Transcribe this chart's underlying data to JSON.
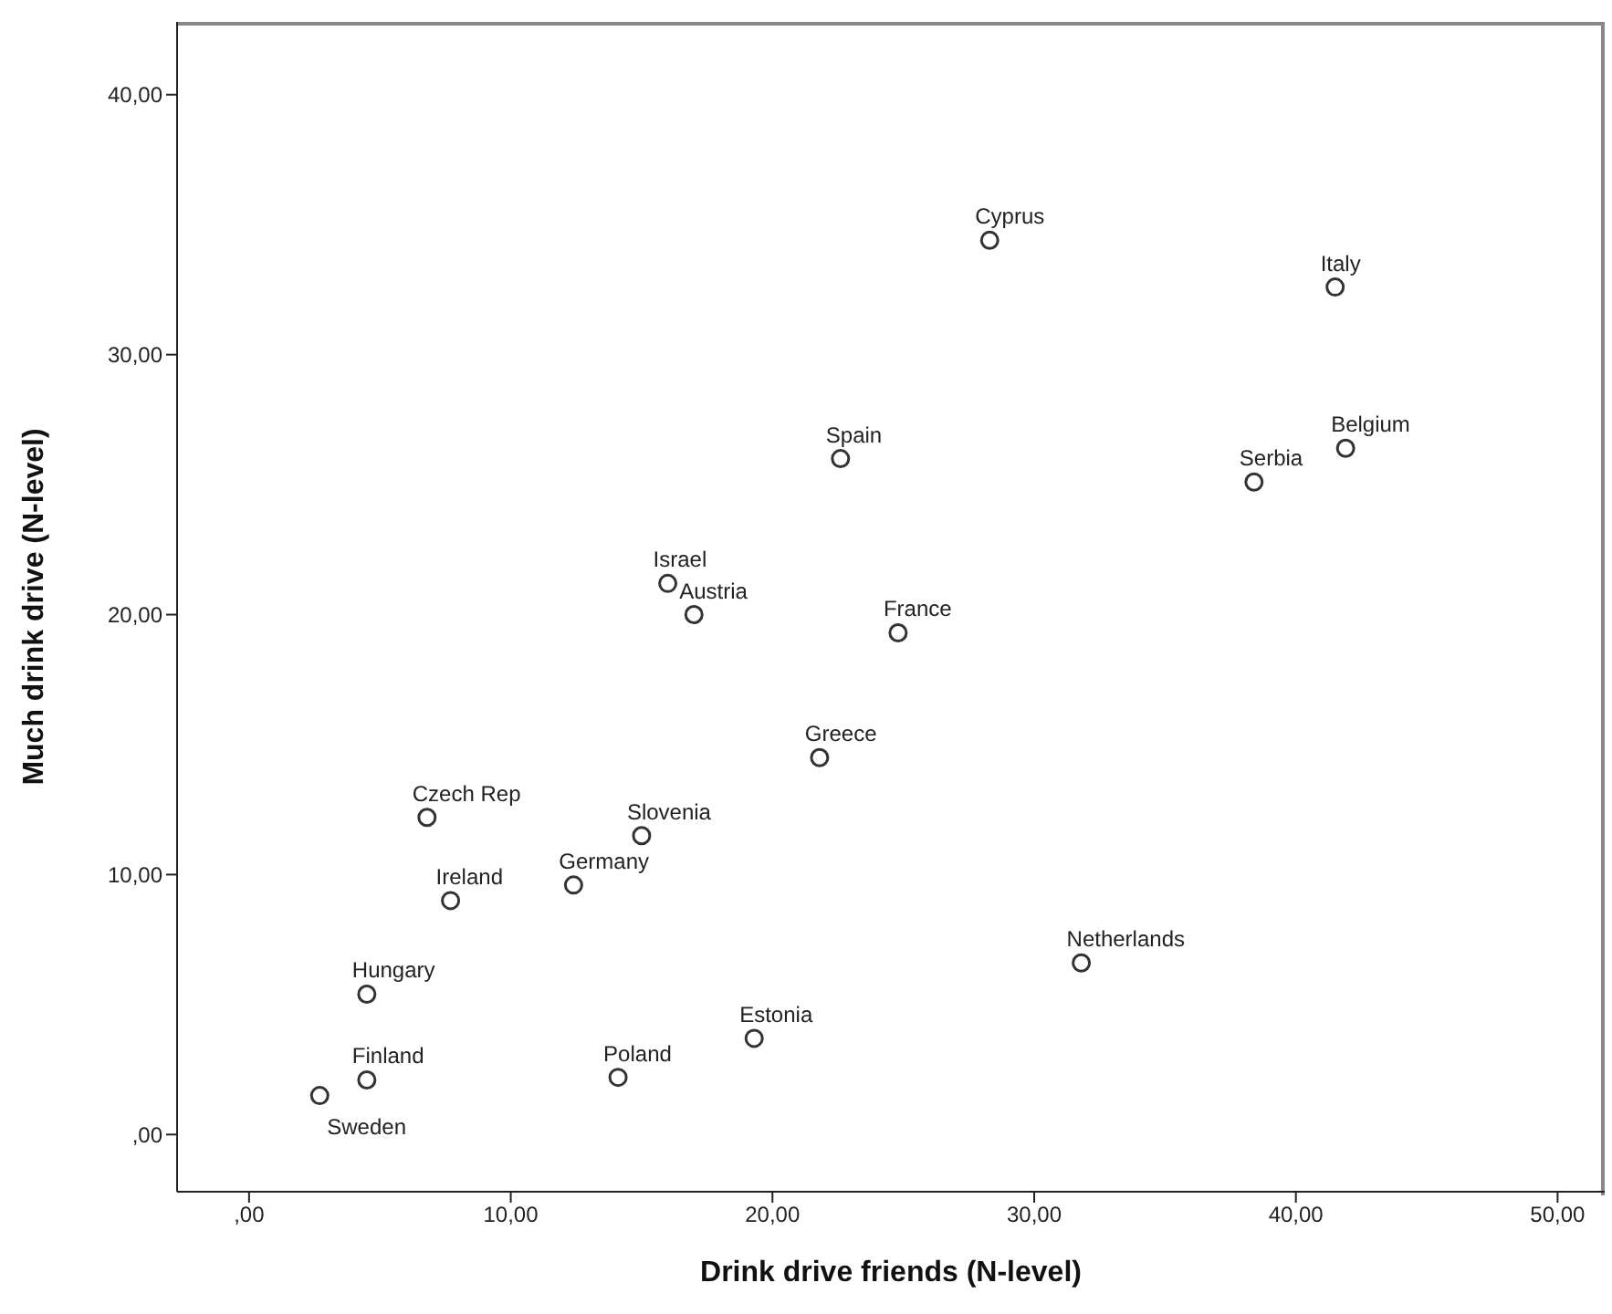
{
  "chart_data": {
    "type": "scatter",
    "xlabel": "Drink drive friends (N-level)",
    "ylabel": "Much drink drive (N-level)",
    "x": [
      28.3,
      41.5,
      41.9,
      38.4,
      22.6,
      16.0,
      17.0,
      24.8,
      21.8,
      6.8,
      15.0,
      7.7,
      12.4,
      31.8,
      4.5,
      19.3,
      14.1,
      4.5,
      2.7
    ],
    "series": [
      {
        "color": "#333333",
        "values": [
          34.4,
          32.6,
          26.4,
          25.1,
          26.0,
          21.2,
          20.0,
          19.3,
          14.5,
          12.2,
          11.5,
          9.0,
          9.6,
          6.6,
          5.4,
          3.7,
          2.2,
          2.1,
          1.5
        ]
      }
    ],
    "marker": "circle",
    "grid": false,
    "legend": false,
    "xlim": [
      -2.75,
      51.8
    ],
    "ylim": [
      -2.2,
      42.8
    ],
    "xticks": [
      {
        "value": 0,
        "label": ",00"
      },
      {
        "value": 10,
        "label": "10,00"
      },
      {
        "value": 20,
        "label": "20,00"
      },
      {
        "value": 30,
        "label": "30,00"
      },
      {
        "value": 40,
        "label": "40,00"
      },
      {
        "value": 50,
        "label": "50,00"
      }
    ],
    "yticks": [
      {
        "value": 0,
        "label": ",00"
      },
      {
        "value": 10,
        "label": "10,00"
      },
      {
        "value": 20,
        "label": "20,00"
      },
      {
        "value": 30,
        "label": "30,00"
      },
      {
        "value": 40,
        "label": "40,00"
      }
    ],
    "annotations": [
      {
        "text": "Cyprus",
        "x": 28.3,
        "y": 34.4
      },
      {
        "text": "Italy",
        "x": 41.5,
        "y": 32.6
      },
      {
        "text": "Belgium",
        "x": 41.9,
        "y": 26.4
      },
      {
        "text": "Serbia",
        "x": 38.4,
        "y": 25.1
      },
      {
        "text": "Spain",
        "x": 22.6,
        "y": 26.0
      },
      {
        "text": "Israel",
        "x": 16.0,
        "y": 21.2
      },
      {
        "text": "Austria",
        "x": 17.0,
        "y": 20.0
      },
      {
        "text": "France",
        "x": 24.8,
        "y": 19.3
      },
      {
        "text": "Greece",
        "x": 21.8,
        "y": 14.5
      },
      {
        "text": "Czech Rep",
        "x": 6.8,
        "y": 12.2
      },
      {
        "text": "Slovenia",
        "x": 15.0,
        "y": 11.5
      },
      {
        "text": "Ireland",
        "x": 7.7,
        "y": 9.0
      },
      {
        "text": "Germany",
        "x": 12.4,
        "y": 9.6
      },
      {
        "text": "Netherlands",
        "x": 31.8,
        "y": 6.6
      },
      {
        "text": "Hungary",
        "x": 4.5,
        "y": 5.4
      },
      {
        "text": "Estonia",
        "x": 19.3,
        "y": 3.7
      },
      {
        "text": "Poland",
        "x": 14.1,
        "y": 2.2
      },
      {
        "text": "Finland",
        "x": 4.5,
        "y": 2.1
      },
      {
        "text": "Sweden",
        "x": 2.7,
        "y": 1.5
      }
    ]
  }
}
